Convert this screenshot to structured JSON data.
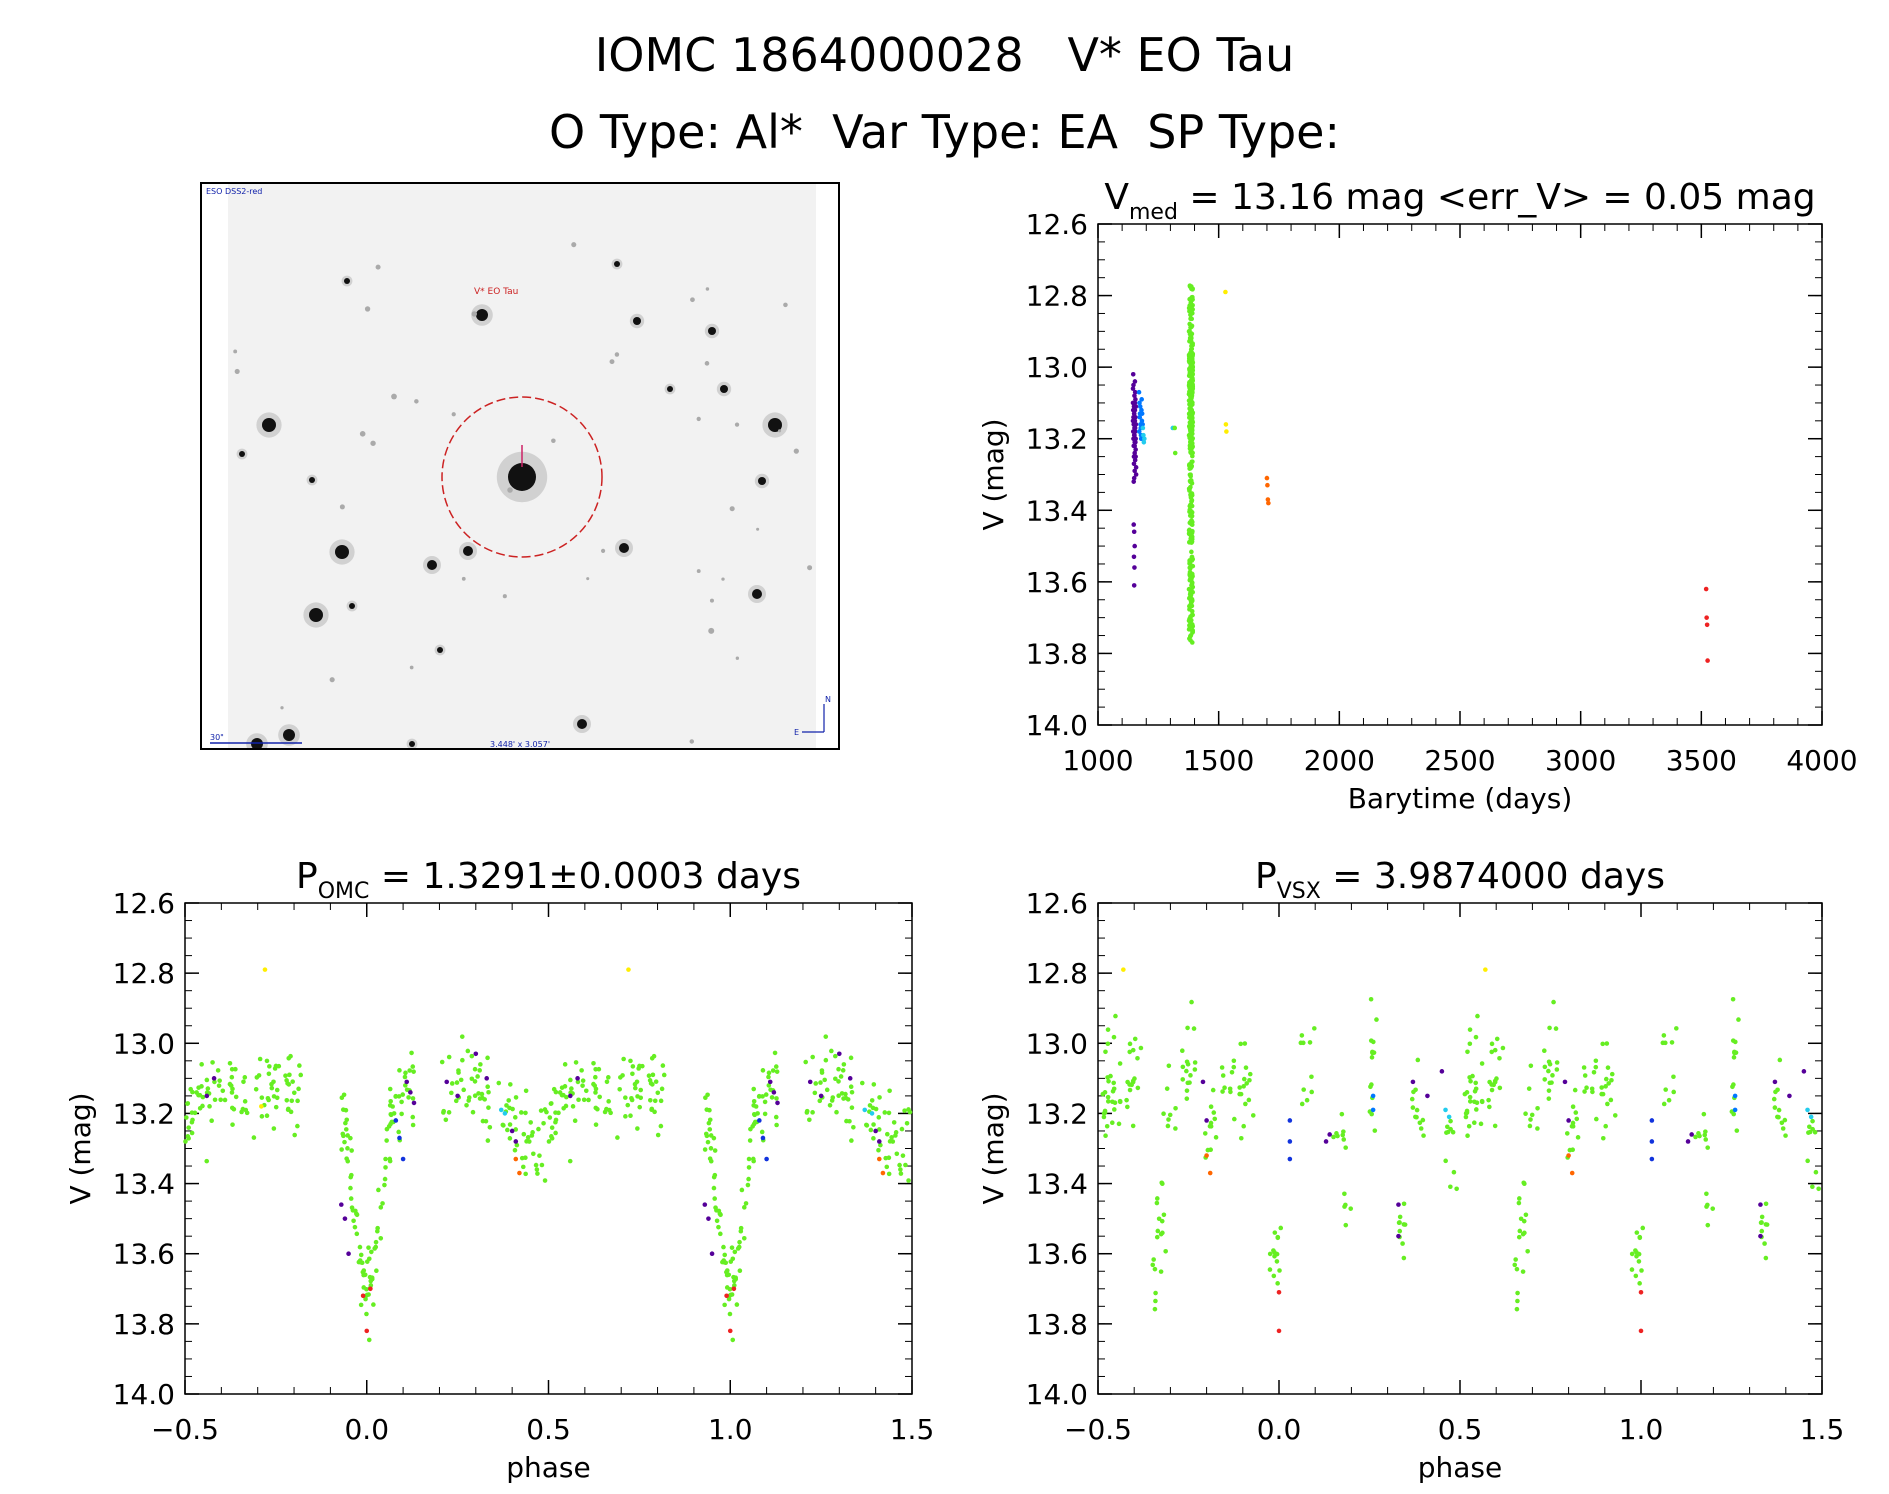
{
  "header": {
    "title_line1": "IOMC 1864000028   V* EO Tau",
    "title_line2": "O Type: Al*  Var Type: EA  SP Type:"
  },
  "sky_image": {
    "survey_label": "ESO DSS2-red",
    "target_label": "V* EO Tau",
    "scale_label": "30\"",
    "fov_label": "3.448' x 3.057'",
    "north_label": "N",
    "east_label": "E"
  },
  "colors": {
    "green": "#66ee22",
    "purple": "#550099",
    "blue": "#1133dd",
    "cyan": "#22ccee",
    "yellow": "#ffee00",
    "orange": "#ff6600",
    "red": "#ee2222",
    "mid_blue": "#0077ff"
  },
  "chart_data": [
    {
      "id": "lightcurve",
      "type": "scatter",
      "title_main": "V",
      "title_sub": "med",
      "title_rest": " = 13.16 mag <err_V> = 0.05 mag",
      "xlabel": "Barytime (days)",
      "ylabel": "V (mag)",
      "xlim": [
        1000,
        4000
      ],
      "ylim": [
        14.0,
        12.6
      ],
      "xticks": [
        "1000",
        "1500",
        "2000",
        "2500",
        "3000",
        "3500",
        "4000"
      ],
      "yticks": [
        "12.6",
        "12.8",
        "13.0",
        "13.2",
        "13.4",
        "13.6",
        "13.8",
        "14.0"
      ],
      "series": [
        {
          "color": "purple",
          "x": [
            1145,
            1145,
            1146,
            1146,
            1147,
            1147,
            1148,
            1148,
            1149,
            1149,
            1150,
            1150,
            1151,
            1151,
            1152,
            1152,
            1153,
            1153,
            1154,
            1154,
            1155,
            1155,
            1156,
            1156,
            1157,
            1157,
            1158,
            1158,
            1145,
            1146,
            1147,
            1148,
            1149,
            1150,
            1151,
            1152,
            1153,
            1154,
            1155,
            1156,
            1148,
            1150,
            1152,
            1149,
            1151,
            1150,
            1153,
            1154,
            1152,
            1150
          ],
          "y": [
            13.1,
            13.15,
            13.12,
            13.18,
            13.2,
            13.14,
            13.16,
            13.22,
            13.25,
            13.11,
            13.13,
            13.19,
            13.08,
            13.17,
            13.21,
            13.24,
            13.15,
            13.12,
            13.26,
            13.18,
            13.09,
            13.14,
            13.2,
            13.23,
            13.16,
            13.11,
            13.28,
            13.3,
            13.06,
            13.02,
            13.05,
            13.32,
            13.27,
            13.13,
            13.19,
            13.22,
            13.1,
            13.17,
            13.21,
            13.25,
            13.44,
            13.46,
            13.5,
            13.53,
            13.56,
            13.61,
            13.04,
            13.07,
            13.29,
            13.31
          ]
        },
        {
          "color": "mid_blue",
          "x": [
            1170,
            1172,
            1174,
            1176,
            1178,
            1180,
            1182,
            1171,
            1173,
            1175,
            1177,
            1179,
            1181,
            1183,
            1185
          ],
          "y": [
            13.07,
            13.1,
            13.13,
            13.16,
            13.19,
            13.12,
            13.15,
            13.18,
            13.14,
            13.11,
            13.17,
            13.2,
            13.09,
            13.13,
            13.16
          ]
        },
        {
          "color": "cyan",
          "x": [
            1186,
            1188,
            1190,
            1192,
            1310
          ],
          "y": [
            13.17,
            13.19,
            13.21,
            13.2,
            13.17
          ]
        },
        {
          "color": "green",
          "x": [
            1318,
            1320
          ],
          "y": [
            13.17,
            13.24
          ]
        },
        {
          "color": "yellow",
          "x": [
            1528,
            1530,
            1532
          ],
          "y": [
            12.79,
            13.16,
            13.18
          ]
        },
        {
          "color": "orange",
          "x": [
            1700,
            1702,
            1704,
            1706
          ],
          "y": [
            13.31,
            13.33,
            13.37,
            13.38
          ]
        },
        {
          "color": "red",
          "x": [
            3520,
            3522,
            3524,
            3526
          ],
          "y": [
            13.62,
            13.7,
            13.72,
            13.82
          ]
        }
      ],
      "green_strip": {
        "x_center": 1385,
        "x_spread": 8,
        "y_min": 12.77,
        "y_max": 13.77,
        "count": 260
      }
    },
    {
      "id": "phase_omc",
      "type": "scatter",
      "title_main": "P",
      "title_sub": "OMC",
      "title_rest": " = 1.3291±0.0003 days",
      "xlabel": "phase",
      "ylabel": "V (mag)",
      "xlim": [
        -0.5,
        1.5
      ],
      "ylim": [
        14.0,
        12.6
      ],
      "xticks": [
        "−0.5",
        "0.0",
        "0.5",
        "1.0",
        "1.5"
      ],
      "yticks": [
        "12.6",
        "12.8",
        "13.0",
        "13.2",
        "13.4",
        "13.6",
        "13.8",
        "14.0"
      ],
      "model": "eclipsing",
      "extra_points": [
        {
          "color": "yellow",
          "x": -0.28,
          "y": 12.79
        },
        {
          "color": "yellow",
          "x": 0.72,
          "y": 12.79
        },
        {
          "color": "yellow",
          "x": -0.29,
          "y": 13.18
        },
        {
          "color": "red",
          "x": 0.0,
          "y": 13.82
        },
        {
          "color": "red",
          "x": 1.0,
          "y": 13.82
        },
        {
          "color": "red",
          "x": 0.01,
          "y": 13.7
        },
        {
          "color": "red",
          "x": 1.01,
          "y": 13.7
        },
        {
          "color": "red",
          "x": -0.01,
          "y": 13.72
        },
        {
          "color": "red",
          "x": 0.99,
          "y": 13.72
        },
        {
          "color": "orange",
          "x": 0.42,
          "y": 13.37
        },
        {
          "color": "orange",
          "x": 1.42,
          "y": 13.37
        },
        {
          "color": "orange",
          "x": 0.41,
          "y": 13.33
        },
        {
          "color": "orange",
          "x": 1.41,
          "y": 13.33
        },
        {
          "color": "blue",
          "x": 0.09,
          "y": 13.27
        },
        {
          "color": "blue",
          "x": 0.1,
          "y": 13.33
        },
        {
          "color": "blue",
          "x": 0.08,
          "y": 13.22
        },
        {
          "color": "blue",
          "x": 1.09,
          "y": 13.27
        },
        {
          "color": "blue",
          "x": 1.1,
          "y": 13.33
        },
        {
          "color": "blue",
          "x": 1.08,
          "y": 13.22
        },
        {
          "color": "cyan",
          "x": 0.37,
          "y": 13.19
        },
        {
          "color": "cyan",
          "x": 0.38,
          "y": 13.2
        },
        {
          "color": "cyan",
          "x": 1.37,
          "y": 13.19
        },
        {
          "color": "cyan",
          "x": 1.39,
          "y": 13.2
        },
        {
          "color": "purple",
          "x": -0.07,
          "y": 13.46
        },
        {
          "color": "purple",
          "x": -0.06,
          "y": 13.5
        },
        {
          "color": "purple",
          "x": -0.05,
          "y": 13.6
        },
        {
          "color": "purple",
          "x": 0.93,
          "y": 13.46
        },
        {
          "color": "purple",
          "x": 0.94,
          "y": 13.5
        },
        {
          "color": "purple",
          "x": 0.95,
          "y": 13.6
        },
        {
          "color": "purple",
          "x": 0.11,
          "y": 13.11
        },
        {
          "color": "purple",
          "x": 0.12,
          "y": 13.14
        },
        {
          "color": "purple",
          "x": 0.13,
          "y": 13.17
        },
        {
          "color": "purple",
          "x": 1.11,
          "y": 13.11
        },
        {
          "color": "purple",
          "x": 1.12,
          "y": 13.14
        },
        {
          "color": "purple",
          "x": 1.13,
          "y": 13.17
        },
        {
          "color": "purple",
          "x": -0.42,
          "y": 13.1
        },
        {
          "color": "purple",
          "x": -0.44,
          "y": 13.15
        },
        {
          "color": "purple",
          "x": 0.58,
          "y": 13.1
        },
        {
          "color": "purple",
          "x": 0.56,
          "y": 13.15
        },
        {
          "color": "purple",
          "x": 0.22,
          "y": 13.11
        },
        {
          "color": "purple",
          "x": 0.25,
          "y": 13.15
        },
        {
          "color": "purple",
          "x": 0.3,
          "y": 13.03
        },
        {
          "color": "purple",
          "x": 0.33,
          "y": 13.1
        },
        {
          "color": "purple",
          "x": 0.4,
          "y": 13.25
        },
        {
          "color": "purple",
          "x": 0.41,
          "y": 13.28
        },
        {
          "color": "purple",
          "x": 1.22,
          "y": 13.11
        },
        {
          "color": "purple",
          "x": 1.25,
          "y": 13.15
        },
        {
          "color": "purple",
          "x": 1.3,
          "y": 13.03
        },
        {
          "color": "purple",
          "x": 1.33,
          "y": 13.1
        },
        {
          "color": "purple",
          "x": 1.4,
          "y": 13.25
        },
        {
          "color": "purple",
          "x": 1.41,
          "y": 13.28
        }
      ]
    },
    {
      "id": "phase_vsx",
      "type": "scatter",
      "title_main": "P",
      "title_sub": "VSX",
      "title_rest": " = 3.9874000 days",
      "xlabel": "phase",
      "ylabel": "V (mag)",
      "xlim": [
        -0.5,
        1.5
      ],
      "ylim": [
        14.0,
        12.6
      ],
      "xticks": [
        "−0.5",
        "0.0",
        "0.5",
        "1.0",
        "1.5"
      ],
      "yticks": [
        "12.6",
        "12.8",
        "13.0",
        "13.2",
        "13.4",
        "13.6",
        "13.8",
        "14.0"
      ],
      "model": "clusters",
      "extra_points": [
        {
          "color": "yellow",
          "x": -0.43,
          "y": 12.79
        },
        {
          "color": "yellow",
          "x": 0.57,
          "y": 12.79
        },
        {
          "color": "red",
          "x": 0.0,
          "y": 13.82
        },
        {
          "color": "red",
          "x": 1.0,
          "y": 13.82
        },
        {
          "color": "red",
          "x": 0.0,
          "y": 13.71
        },
        {
          "color": "red",
          "x": 1.0,
          "y": 13.71
        },
        {
          "color": "orange",
          "x": -0.19,
          "y": 13.37
        },
        {
          "color": "orange",
          "x": 0.81,
          "y": 13.37
        },
        {
          "color": "orange",
          "x": -0.2,
          "y": 13.32
        },
        {
          "color": "orange",
          "x": 0.8,
          "y": 13.32
        },
        {
          "color": "blue",
          "x": 0.03,
          "y": 13.22
        },
        {
          "color": "blue",
          "x": 0.03,
          "y": 13.28
        },
        {
          "color": "blue",
          "x": 0.03,
          "y": 13.33
        },
        {
          "color": "blue",
          "x": 1.03,
          "y": 13.22
        },
        {
          "color": "blue",
          "x": 1.03,
          "y": 13.28
        },
        {
          "color": "blue",
          "x": 1.03,
          "y": 13.33
        },
        {
          "color": "mid_blue",
          "x": 0.26,
          "y": 13.15
        },
        {
          "color": "mid_blue",
          "x": 0.26,
          "y": 13.19
        },
        {
          "color": "mid_blue",
          "x": 1.26,
          "y": 13.15
        },
        {
          "color": "mid_blue",
          "x": 1.26,
          "y": 13.19
        },
        {
          "color": "cyan",
          "x": 0.46,
          "y": 13.19
        },
        {
          "color": "cyan",
          "x": 0.47,
          "y": 13.21
        },
        {
          "color": "cyan",
          "x": 1.46,
          "y": 13.19
        },
        {
          "color": "cyan",
          "x": 1.47,
          "y": 13.21
        },
        {
          "color": "purple",
          "x": -0.21,
          "y": 13.11
        },
        {
          "color": "purple",
          "x": -0.2,
          "y": 13.22
        },
        {
          "color": "purple",
          "x": 0.79,
          "y": 13.11
        },
        {
          "color": "purple",
          "x": 0.8,
          "y": 13.22
        },
        {
          "color": "purple",
          "x": 0.13,
          "y": 13.28
        },
        {
          "color": "purple",
          "x": 0.14,
          "y": 13.26
        },
        {
          "color": "purple",
          "x": 1.13,
          "y": 13.28
        },
        {
          "color": "purple",
          "x": 1.14,
          "y": 13.26
        },
        {
          "color": "purple",
          "x": 0.33,
          "y": 13.46
        },
        {
          "color": "purple",
          "x": 0.33,
          "y": 13.55
        },
        {
          "color": "purple",
          "x": 1.33,
          "y": 13.46
        },
        {
          "color": "purple",
          "x": 1.33,
          "y": 13.55
        },
        {
          "color": "purple",
          "x": 0.37,
          "y": 13.11
        },
        {
          "color": "purple",
          "x": 0.41,
          "y": 13.15
        },
        {
          "color": "purple",
          "x": 0.45,
          "y": 13.08
        },
        {
          "color": "purple",
          "x": 1.37,
          "y": 13.11
        },
        {
          "color": "purple",
          "x": 1.41,
          "y": 13.15
        },
        {
          "color": "purple",
          "x": 1.45,
          "y": 13.08
        }
      ]
    }
  ]
}
